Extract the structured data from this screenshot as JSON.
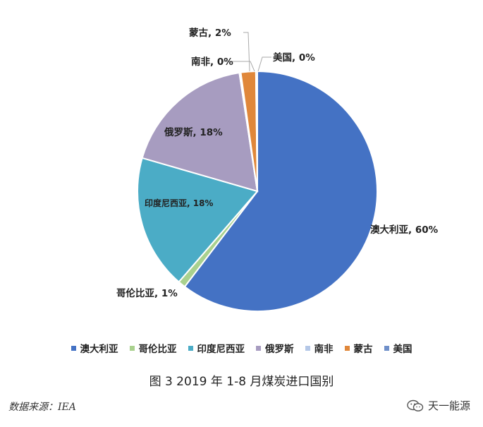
{
  "chart_data": {
    "type": "pie",
    "title": "图 3 2019 年 1-8 月煤炭进口国别",
    "slices": [
      {
        "name": "澳大利亚",
        "value": 60,
        "label": "澳大利亚, 60%",
        "color": "#4472C4"
      },
      {
        "name": "哥伦比亚",
        "value": 1,
        "label": "哥伦比亚, 1%",
        "color": "#A9D18E"
      },
      {
        "name": "印度尼西亚",
        "value": 18,
        "label": "印度尼西亚, 18%",
        "color": "#4BACC6"
      },
      {
        "name": "俄罗斯",
        "value": 18,
        "label": "俄罗斯, 18%",
        "color": "#A79CC0"
      },
      {
        "name": "南非",
        "value": 0,
        "label": "南非, 0%",
        "color": "#B4C7E7"
      },
      {
        "name": "蒙古",
        "value": 2,
        "label": "蒙古, 2%",
        "color": "#E0873A"
      },
      {
        "name": "美国",
        "value": 0,
        "label": "美国, 0%",
        "color": "#6F8FC9"
      }
    ],
    "legend_position": "bottom"
  },
  "source": "数据来源：IEA",
  "brand": "天一能源"
}
